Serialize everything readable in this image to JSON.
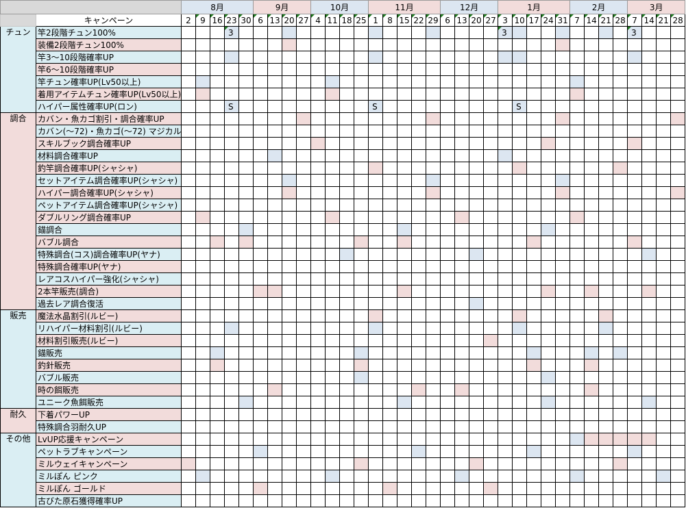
{
  "colors": {
    "blue": "#dce6f1",
    "pink": "#f2dcdb",
    "label_blue": "#daeef3",
    "header_gray": "#d9d9d9",
    "marker": "#1f7a1f"
  },
  "header": {
    "campaign_label": "キャンペーン"
  },
  "months": [
    {
      "label": "8月",
      "color": "blue",
      "dates": [
        "2",
        "9",
        "16",
        "23",
        "30"
      ]
    },
    {
      "label": "9月",
      "color": "pink",
      "dates": [
        "6",
        "13",
        "20",
        "27"
      ]
    },
    {
      "label": "10月",
      "color": "blue",
      "dates": [
        "4",
        "11",
        "18",
        "25"
      ]
    },
    {
      "label": "11月",
      "color": "pink",
      "dates": [
        "1",
        "8",
        "15",
        "22",
        "29"
      ]
    },
    {
      "label": "12月",
      "color": "blue",
      "dates": [
        "6",
        "13",
        "20",
        "27"
      ]
    },
    {
      "label": "1月",
      "color": "pink",
      "dates": [
        "3",
        "10",
        "17",
        "24",
        "31"
      ]
    },
    {
      "label": "2月",
      "color": "blue",
      "dates": [
        "7",
        "14",
        "21",
        "28"
      ]
    },
    {
      "label": "3月",
      "color": "pink",
      "dates": [
        "7",
        "14",
        "21",
        "28"
      ]
    }
  ],
  "categories": [
    {
      "label": "チュン",
      "color": "blue",
      "rows": [
        {
          "name": "竿2段階チュン100%",
          "color": "blue",
          "marks": [
            3,
            7,
            13,
            17,
            22,
            23,
            26,
            29,
            31
          ],
          "texts": {
            "3": "3",
            "22": "3",
            "31": "3"
          }
        },
        {
          "name": "装備2段階チュン100%",
          "color": "pink",
          "marks": [
            7,
            26
          ]
        },
        {
          "name": "竿3～10段階確率UP",
          "color": "blue",
          "marks": [
            3,
            13,
            22,
            23,
            31
          ]
        },
        {
          "name": "竿6～10段階確率UP",
          "color": "pink",
          "marks": []
        },
        {
          "name": "竿チュン確率UP(Lv50以上)",
          "color": "blue",
          "marks": [
            1,
            10,
            27
          ]
        },
        {
          "name": "着用アイテムチュン確率UP(Lv50以上)",
          "color": "pink",
          "marks": [
            1,
            10,
            27
          ]
        },
        {
          "name": "ハイパー属性確率UP(ロン)",
          "color": "blue",
          "marks": [
            3,
            13,
            23
          ],
          "texts": {
            "3": "S",
            "13": "S",
            "23": "S"
          }
        }
      ]
    },
    {
      "label": "調合",
      "color": "pink",
      "rows": [
        {
          "name": "カバン・魚カゴ割引・調合確率UP",
          "color": "pink",
          "marks": [
            8,
            17,
            26,
            34
          ]
        },
        {
          "name": "カバン(～72)・魚カゴ(～72) マジカル",
          "color": "blue",
          "marks": []
        },
        {
          "name": "スキルブック調合確率UP",
          "color": "pink",
          "marks": [
            9,
            25,
            31
          ]
        },
        {
          "name": "材料調合確率UP",
          "color": "blue",
          "marks": [
            6,
            22
          ]
        },
        {
          "name": "釣竿調合確率UP(シャシャ)",
          "color": "pink",
          "marks": [
            13,
            23,
            30
          ]
        },
        {
          "name": "セットアイテム調合確率UP(シャシャ)",
          "color": "blue",
          "marks": [
            7,
            17,
            26
          ]
        },
        {
          "name": "ハイパー調合確率UP(シャシャ)",
          "color": "pink",
          "marks": [
            7,
            17,
            26,
            34
          ]
        },
        {
          "name": "ペットアイテム調合確率UP(シャシャ)",
          "color": "blue",
          "marks": []
        },
        {
          "name": "ダブルリング調合確率UP",
          "color": "pink",
          "marks": [
            1,
            10,
            19,
            27
          ]
        },
        {
          "name": "錨調合",
          "color": "blue",
          "marks": [
            4,
            15,
            25
          ]
        },
        {
          "name": "バブル調合",
          "color": "pink",
          "marks": [
            2,
            4,
            12,
            15,
            24,
            31
          ]
        },
        {
          "name": "特殊調合(コス)調合確率UP(ヤナ)",
          "color": "blue",
          "marks": [
            11,
            20,
            32
          ]
        },
        {
          "name": "特殊調合確率UP(ヤナ)",
          "color": "pink",
          "marks": []
        },
        {
          "name": "レアコスハイパー強化(シャシャ)",
          "color": "blue",
          "marks": []
        },
        {
          "name": "2本竿販売(調合)",
          "color": "pink",
          "marks": [
            5,
            6,
            15,
            25,
            28,
            32
          ]
        },
        {
          "name": "過去レア調合復活",
          "color": "blue",
          "marks": [
            20
          ]
        }
      ]
    },
    {
      "label": "販売",
      "color": "blue",
      "rows": [
        {
          "name": "魔法水晶割引(ルビー)",
          "color": "pink",
          "marks": [
            13,
            23,
            29
          ]
        },
        {
          "name": "リハイパー材料割引(ルビー)",
          "color": "blue",
          "marks": [
            3,
            13,
            23,
            29
          ]
        },
        {
          "name": "材料割引販売(ルビー)",
          "color": "pink",
          "marks": [
            21
          ]
        },
        {
          "name": "錨販売",
          "color": "blue",
          "marks": [
            2,
            12,
            24,
            28,
            30
          ]
        },
        {
          "name": "釣針販売",
          "color": "pink",
          "marks": [
            2,
            12,
            24,
            28
          ]
        },
        {
          "name": "バブル販売",
          "color": "blue",
          "marks": [
            12,
            25
          ]
        },
        {
          "name": "時の餌販売",
          "color": "pink",
          "marks": [
            6,
            16,
            19,
            28
          ]
        },
        {
          "name": "ユニーク魚餌販売",
          "color": "blue",
          "marks": [
            4,
            15,
            25,
            32
          ]
        }
      ]
    },
    {
      "label": "耐久",
      "color": "pink",
      "rows": [
        {
          "name": "下着パワーUP",
          "color": "pink",
          "marks": []
        },
        {
          "name": "特殊調合羽耐久UP",
          "color": "blue",
          "marks": []
        }
      ]
    },
    {
      "label": "その他",
      "color": "blue",
      "rows": [
        {
          "name": "LvUP応援キャンペーン",
          "color": "pink",
          "marks": [
            28,
            29,
            30,
            31,
            32
          ],
          "marks_alt": [
            27
          ]
        },
        {
          "name": "ペットラブキャンペーン",
          "color": "blue",
          "marks": [
            5,
            16,
            24,
            31
          ]
        },
        {
          "name": "ミルウェイキャンペーン",
          "color": "pink",
          "marks": [
            0,
            12,
            20,
            30
          ]
        },
        {
          "name": "ミルぽん ピンク",
          "color": "blue",
          "marks": [
            1,
            10,
            19,
            27,
            33
          ]
        },
        {
          "name": "ミルぽん ゴールド",
          "color": "pink",
          "marks": [
            5,
            14,
            21
          ]
        },
        {
          "name": "古びた原石獲得確率UP",
          "color": "blue",
          "marks": []
        }
      ]
    }
  ]
}
